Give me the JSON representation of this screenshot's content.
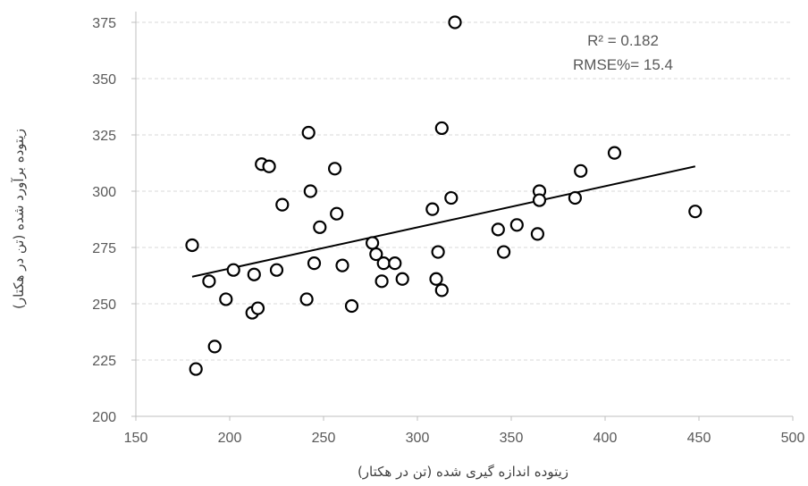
{
  "chart_data": {
    "type": "scatter",
    "title": "",
    "xlabel": "زیتوده اندازه گیری شده (تن در هکتار)",
    "ylabel": "زیتوده برآورد شده (تن در هکتار)",
    "xlim": [
      150,
      500
    ],
    "ylim": [
      200,
      375
    ],
    "xticks": [
      150,
      200,
      250,
      300,
      350,
      400,
      450,
      500
    ],
    "yticks": [
      200,
      225,
      250,
      275,
      300,
      325,
      350,
      375
    ],
    "grid": "horizontal-dashed",
    "legend": "none",
    "colors": {
      "marker_stroke": "#000000",
      "trend": "#000000",
      "grid": "#d9d9d9",
      "axis": "#bfbfbf"
    },
    "annotations": {
      "r2": "R² = 0.182",
      "rmse": "RMSE%= 15.4"
    },
    "trendline": {
      "x": [
        180,
        448
      ],
      "y": [
        262,
        311
      ]
    },
    "points": [
      [
        180,
        276
      ],
      [
        182,
        221
      ],
      [
        189,
        260
      ],
      [
        192,
        231
      ],
      [
        198,
        252
      ],
      [
        202,
        265
      ],
      [
        212,
        246
      ],
      [
        213,
        263
      ],
      [
        215,
        248
      ],
      [
        217,
        312
      ],
      [
        221,
        311
      ],
      [
        225,
        265
      ],
      [
        228,
        294
      ],
      [
        241,
        252
      ],
      [
        242,
        326
      ],
      [
        243,
        300
      ],
      [
        245,
        268
      ],
      [
        248,
        284
      ],
      [
        256,
        310
      ],
      [
        257,
        290
      ],
      [
        260,
        267
      ],
      [
        265,
        249
      ],
      [
        276,
        277
      ],
      [
        278,
        272
      ],
      [
        281,
        260
      ],
      [
        282,
        268
      ],
      [
        288,
        268
      ],
      [
        292,
        261
      ],
      [
        308,
        292
      ],
      [
        310,
        261
      ],
      [
        311,
        273
      ],
      [
        313,
        256
      ],
      [
        313,
        328
      ],
      [
        318,
        297
      ],
      [
        320,
        375
      ],
      [
        343,
        283
      ],
      [
        346,
        273
      ],
      [
        353,
        285
      ],
      [
        364,
        281
      ],
      [
        365,
        300
      ],
      [
        365,
        296
      ],
      [
        384,
        297
      ],
      [
        387,
        309
      ],
      [
        405,
        317
      ],
      [
        448,
        291
      ]
    ]
  }
}
